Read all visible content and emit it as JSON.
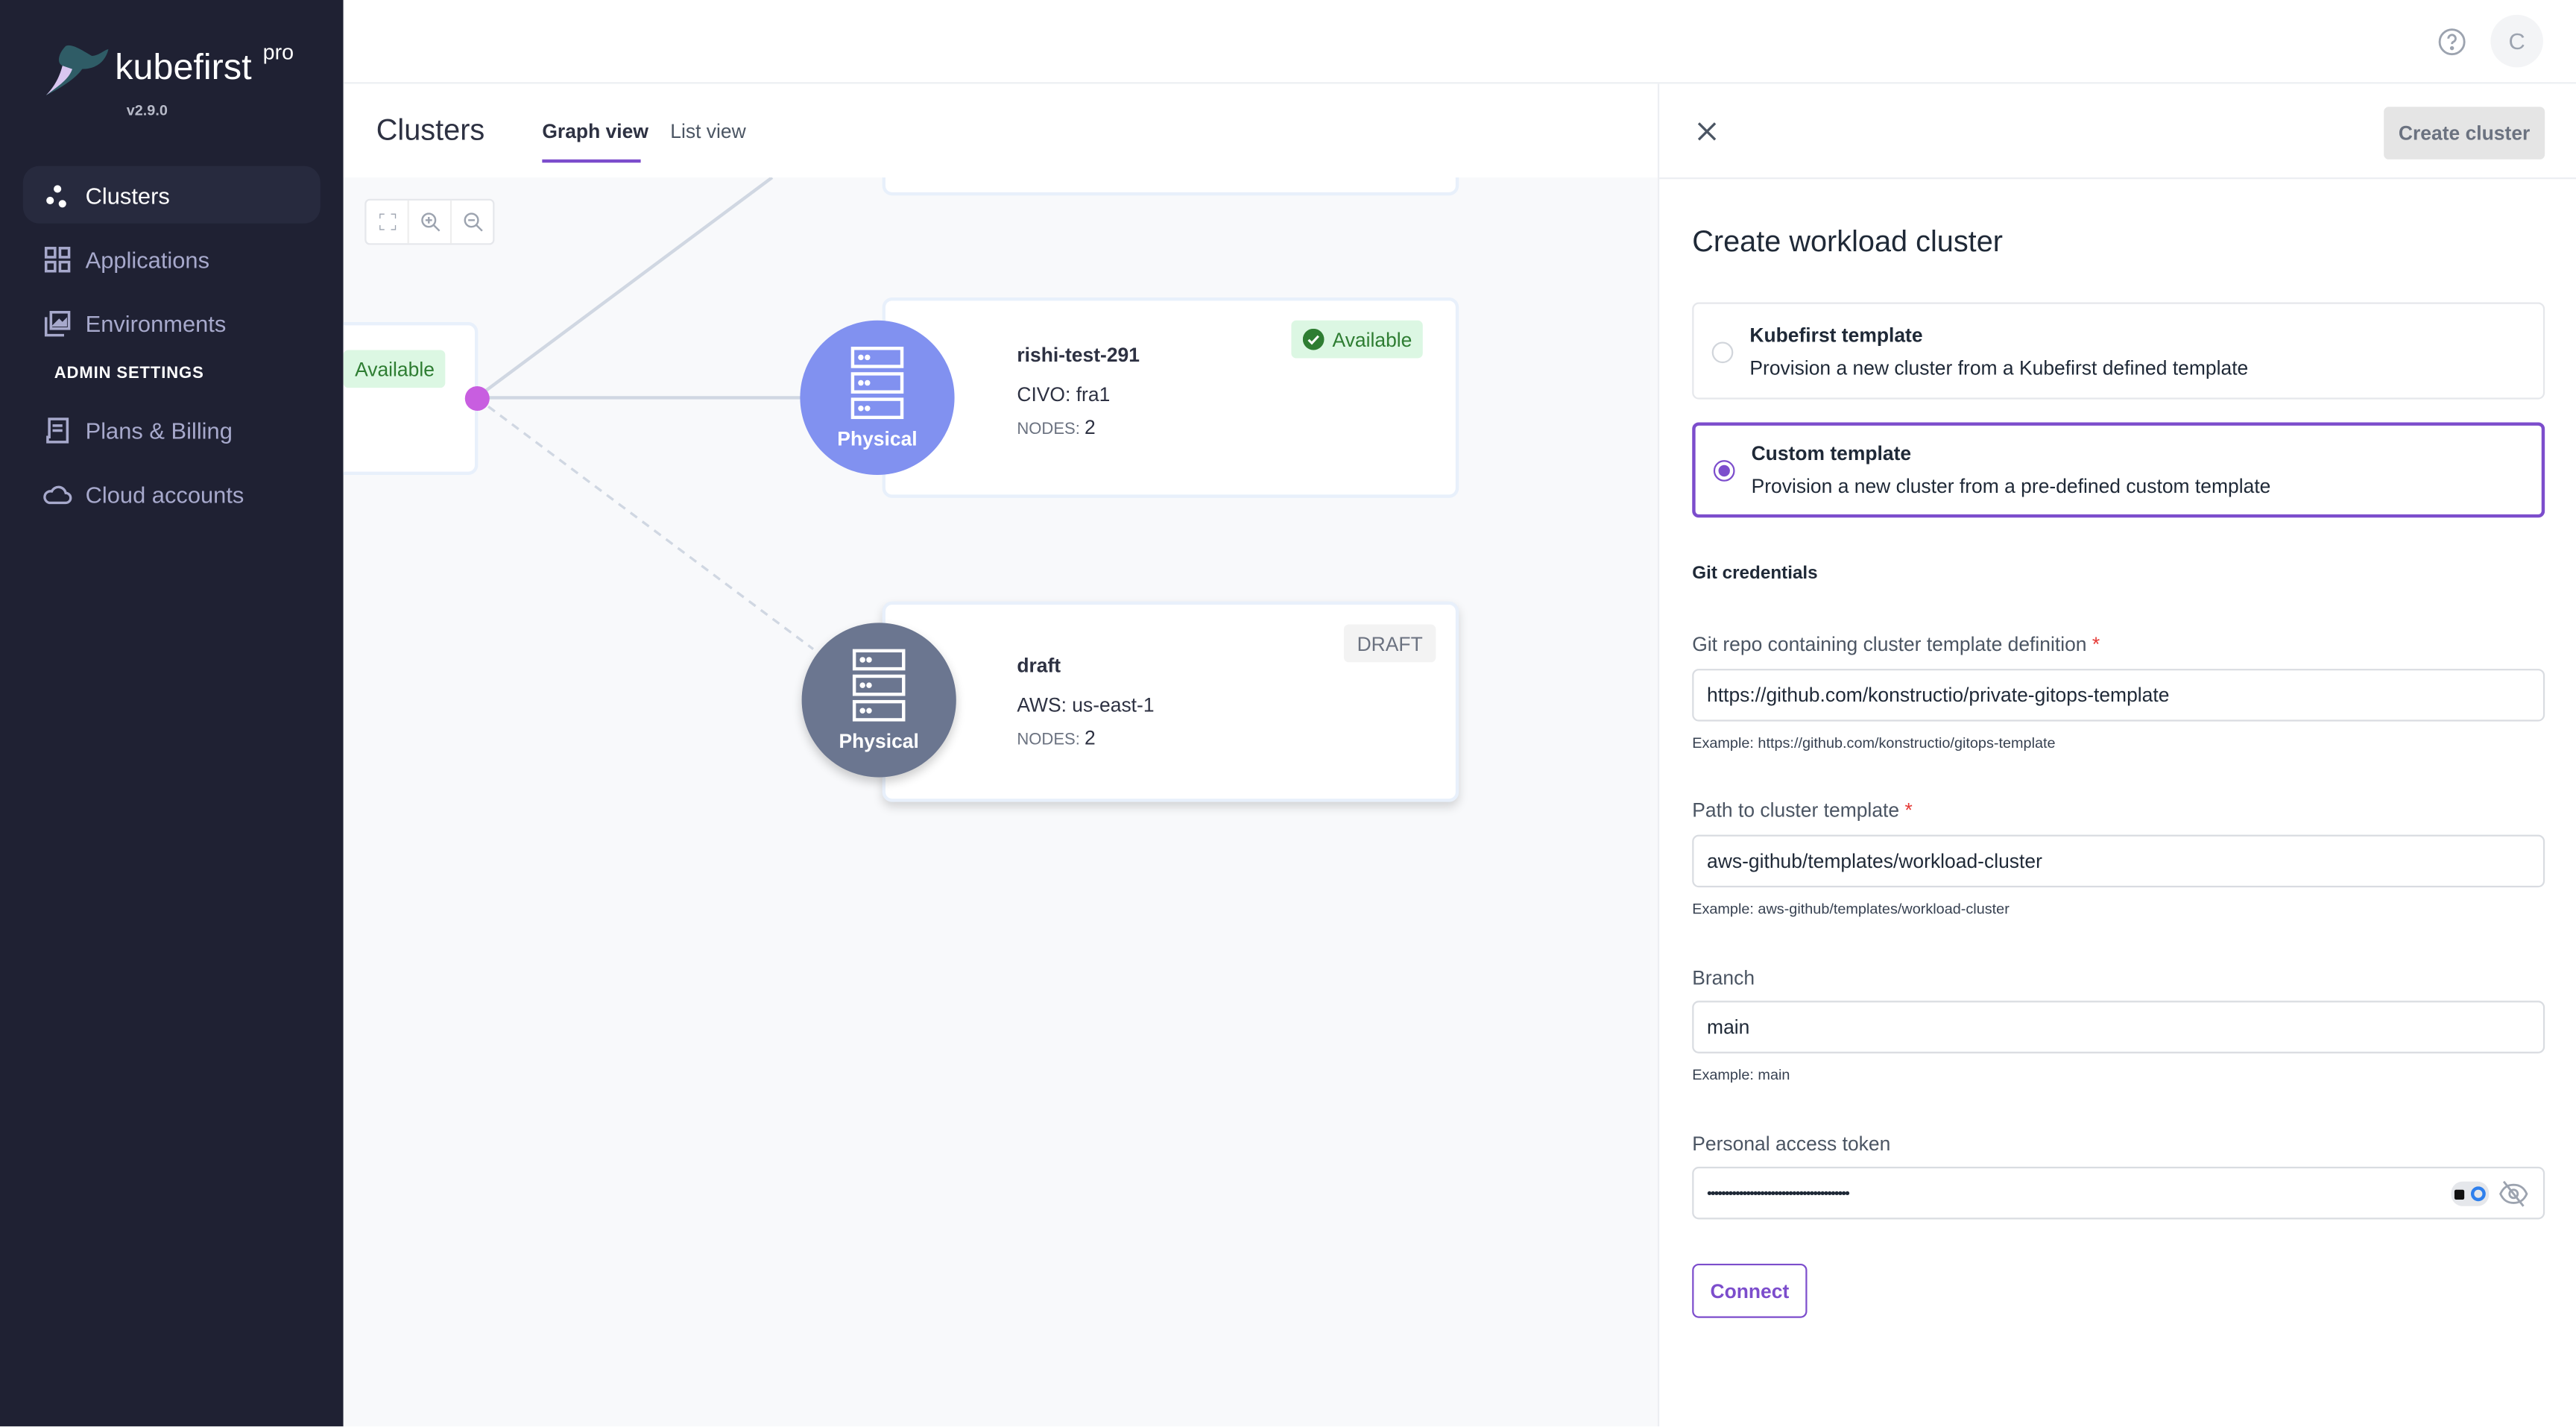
{
  "brand": {
    "name": "kubefirst",
    "tier": "pro",
    "version": "v2.9.0"
  },
  "sidebar": {
    "items": [
      {
        "label": "Clusters",
        "icon": "clusters-icon",
        "active": true
      },
      {
        "label": "Applications",
        "icon": "grid-icon"
      },
      {
        "label": "Environments",
        "icon": "environments-icon"
      }
    ],
    "admin_heading": "ADMIN SETTINGS",
    "admin_items": [
      {
        "label": "Plans & Billing",
        "icon": "receipt-icon"
      },
      {
        "label": "Cloud accounts",
        "icon": "cloud-icon"
      }
    ]
  },
  "topbar": {
    "avatar": "C",
    "help_icon": "help-circle-icon"
  },
  "page": {
    "title": "Clusters",
    "tabs": [
      {
        "label": "Graph view",
        "active": true
      },
      {
        "label": "List view"
      }
    ]
  },
  "graph": {
    "parent": {
      "status": "Available"
    },
    "clusters": [
      {
        "name": "rishi-test-291",
        "type": "Physical",
        "provider": "CIVO: fra1",
        "nodes_label": "NODES:",
        "nodes": "2",
        "status": "Available",
        "color": "#8191f0"
      },
      {
        "name": "draft",
        "type": "Physical",
        "provider": "AWS: us-east-1",
        "nodes_label": "NODES:",
        "nodes": "2",
        "status": "DRAFT",
        "color": "#6b7690"
      }
    ]
  },
  "panel": {
    "create_button": "Create cluster",
    "title": "Create workload cluster",
    "options": [
      {
        "title": "Kubefirst template",
        "desc": "Provision a new cluster from a Kubefirst defined template",
        "selected": false
      },
      {
        "title": "Custom template",
        "desc": "Provision a new cluster from a pre-defined custom template",
        "selected": true
      }
    ],
    "section": "Git credentials",
    "fields": [
      {
        "label": "Git repo containing cluster template definition",
        "required": "*",
        "value": "https://github.com/konstructio/private-gitops-template",
        "example": "Example: https://github.com/konstructio/gitops-template"
      },
      {
        "label": "Path to cluster template",
        "required": "*",
        "value": "aws-github/templates/workload-cluster",
        "example": "Example: aws-github/templates/workload-cluster"
      },
      {
        "label": "Branch",
        "value": "main",
        "example": "Example: main"
      },
      {
        "label": "Personal access token",
        "value": "••••••••••••••••••••••••••••••••••••••••"
      }
    ],
    "connect": "Connect",
    "accent": "#7c4dcc"
  }
}
